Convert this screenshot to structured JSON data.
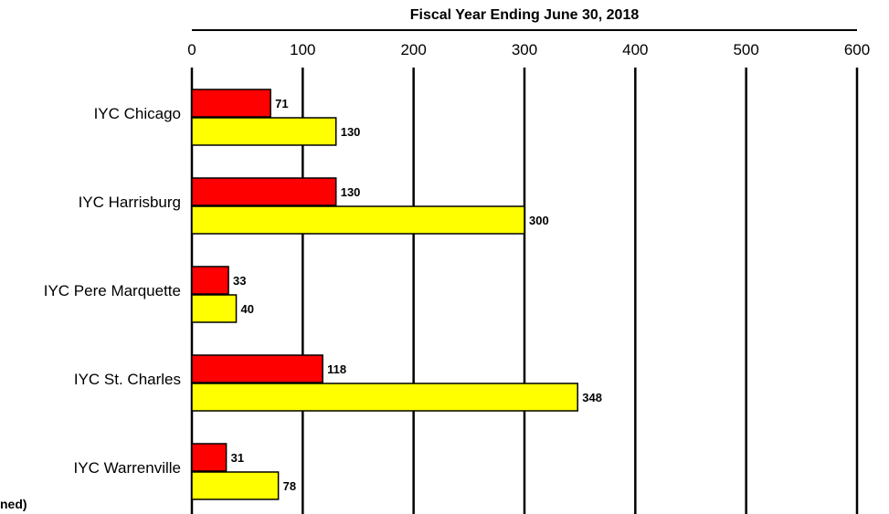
{
  "chart_data": {
    "type": "bar",
    "orientation": "horizontal",
    "title": "Fiscal Year Ending June 30, 2018",
    "categories": [
      "IYC Chicago",
      "IYC Harrisburg",
      "IYC Pere Marquette",
      "IYC St. Charles",
      "IYC Warrenville"
    ],
    "series": [
      {
        "color": "#ff0000",
        "values": [
          71,
          130,
          33,
          118,
          31
        ]
      },
      {
        "color": "#ffff00",
        "values": [
          130,
          300,
          40,
          348,
          78
        ]
      }
    ],
    "xlim": [
      0,
      600
    ],
    "xticks": [
      0,
      100,
      200,
      300,
      400,
      500,
      600
    ],
    "grid": true,
    "axis_position": "top"
  },
  "footnote_fragment": "ned)"
}
